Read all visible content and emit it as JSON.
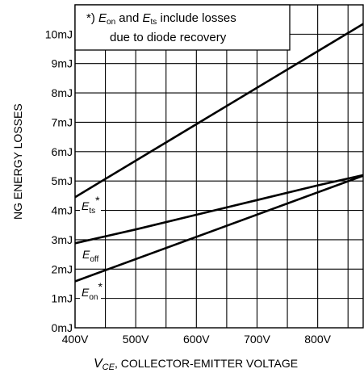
{
  "chart_data": {
    "type": "line",
    "xlabel": {
      "symbol": "V",
      "subscript": "CE",
      "suffix": ", COLLECTOR-EMITTER VOLTAGE"
    },
    "ylabel": "NG ENERGY LOSSES",
    "xlim": [
      400,
      875
    ],
    "ylim": [
      0,
      11
    ],
    "x_ticks": [
      {
        "value": 400,
        "label": "400V"
      },
      {
        "value": 500,
        "label": "500V"
      },
      {
        "value": 600,
        "label": "600V"
      },
      {
        "value": 700,
        "label": "700V"
      },
      {
        "value": 800,
        "label": "800V"
      }
    ],
    "y_ticks": [
      {
        "value": 0,
        "label": "0mJ"
      },
      {
        "value": 1,
        "label": "1mJ"
      },
      {
        "value": 2,
        "label": "2mJ"
      },
      {
        "value": 3,
        "label": "3mJ"
      },
      {
        "value": 4,
        "label": "4mJ"
      },
      {
        "value": 5,
        "label": "5mJ"
      },
      {
        "value": 6,
        "label": "6mJ"
      },
      {
        "value": 7,
        "label": "7mJ"
      },
      {
        "value": 8,
        "label": "8mJ"
      },
      {
        "value": 9,
        "label": "9mJ"
      },
      {
        "value": 10,
        "label": "10mJ"
      }
    ],
    "x_gridlines": [
      400,
      450,
      500,
      550,
      600,
      650,
      700,
      750,
      800,
      850
    ],
    "y_gridlines": [
      0,
      1,
      2,
      3,
      4,
      5,
      6,
      7,
      8,
      9,
      10
    ],
    "grid": true,
    "series": [
      {
        "name": "Ets",
        "label_base": "E",
        "label_sub": "ts",
        "label_sup": "*",
        "x": [
          400,
          875
        ],
        "y": [
          4.45,
          10.35
        ]
      },
      {
        "name": "Eoff",
        "label_base": "E",
        "label_sub": "off",
        "label_sup": "",
        "x": [
          400,
          500,
          600,
          700,
          800,
          875
        ],
        "y": [
          2.88,
          3.35,
          3.85,
          4.35,
          4.85,
          5.2
        ]
      },
      {
        "name": "Eon",
        "label_base": "E",
        "label_sub": "on",
        "label_sup": "*",
        "x": [
          400,
          875
        ],
        "y": [
          1.58,
          5.18
        ]
      }
    ],
    "annotation": {
      "line1": {
        "prefix": "*) ",
        "e1": "E",
        "s1": "on",
        "mid": " and ",
        "e2": "E",
        "s2": "ts",
        "suffix": " include losses"
      },
      "line2": "due to diode recovery"
    }
  }
}
